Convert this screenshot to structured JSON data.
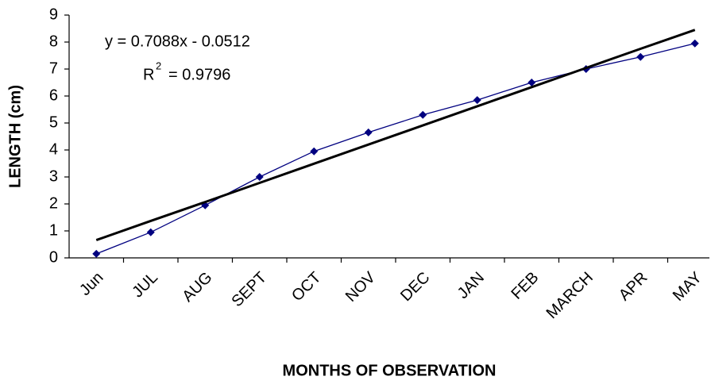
{
  "chart_data": {
    "type": "line",
    "x_label": "MONTHS OF OBSERVATION",
    "y_label": "LENGTH (cm)",
    "categories": [
      "Jun",
      "JUL",
      "AUG",
      "SEPT",
      "OCT",
      "NOV",
      "DEC",
      "JAN",
      "FEB",
      "MARCH",
      "APR",
      "MAY"
    ],
    "series": [
      {
        "color": "#000080",
        "values": [
          0.15,
          0.95,
          1.95,
          3.0,
          3.95,
          4.65,
          5.3,
          5.85,
          6.5,
          7.0,
          7.45,
          7.95
        ]
      }
    ],
    "trendline": {
      "color": "#000000",
      "values": [
        0.66,
        1.37,
        2.07,
        2.78,
        3.49,
        4.2,
        4.91,
        5.62,
        6.33,
        7.04,
        7.75,
        8.45
      ]
    },
    "equation": "y = 0.7088x - 0.0512",
    "r2_label": "R",
    "r2_exponent": "2",
    "r2_value": "= 0.9796",
    "ylim": [
      0,
      9
    ],
    "yticks": [
      0,
      1,
      2,
      3,
      4,
      5,
      6,
      7,
      8,
      9
    ],
    "grid": false
  }
}
